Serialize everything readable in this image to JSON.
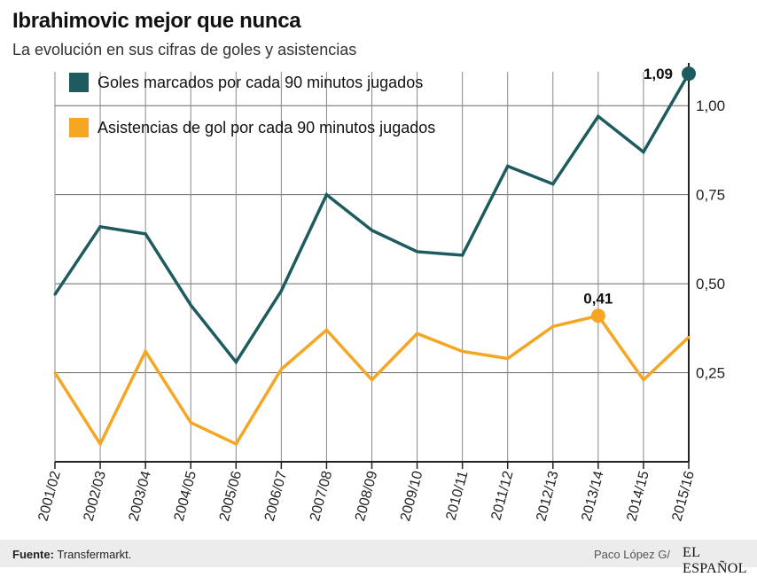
{
  "header": {
    "title": "Ibrahimovic mejor que nunca",
    "subtitle": "La evolución en sus cifras de goles y asistencias"
  },
  "footer": {
    "source_label": "Fuente:",
    "source_value": "Transfermarkt.",
    "author": "Paco López G/",
    "brand": "EL ESPAÑOL"
  },
  "colors": {
    "goles": "#1d5b5e",
    "asistencias": "#f5a623",
    "grid": "#555555"
  },
  "chart_data": {
    "type": "line",
    "x": [
      "2001/02",
      "2002/03",
      "2003/04",
      "2004/05",
      "2005/06",
      "2006/07",
      "2007/08",
      "2008/09",
      "2009/10",
      "2010/11",
      "2011/12",
      "2012/13",
      "2013/14",
      "2014/15",
      "2015/16"
    ],
    "series": [
      {
        "name": "Goles marcados por cada 90 minutos jugados",
        "values": [
          0.47,
          0.66,
          0.64,
          0.44,
          0.28,
          0.48,
          0.75,
          0.65,
          0.59,
          0.58,
          0.83,
          0.78,
          0.97,
          0.87,
          1.09
        ],
        "annotation": {
          "index": 14,
          "label": "1,09"
        }
      },
      {
        "name": "Asistencias de gol por cada 90 minutos jugados",
        "values": [
          0.25,
          0.05,
          0.31,
          0.11,
          0.05,
          0.26,
          0.37,
          0.23,
          0.36,
          0.31,
          0.29,
          0.38,
          0.41,
          0.23,
          0.35
        ],
        "annotation": {
          "index": 12,
          "label": "0,41"
        }
      }
    ],
    "yticks": [
      {
        "value": 0.25,
        "label": "0,25"
      },
      {
        "value": 0.5,
        "label": "0,50"
      },
      {
        "value": 0.75,
        "label": "0,75"
      },
      {
        "value": 1.0,
        "label": "1,00"
      }
    ],
    "ylim": [
      0,
      1.12
    ],
    "grid": true,
    "legend_position": "top-left"
  }
}
